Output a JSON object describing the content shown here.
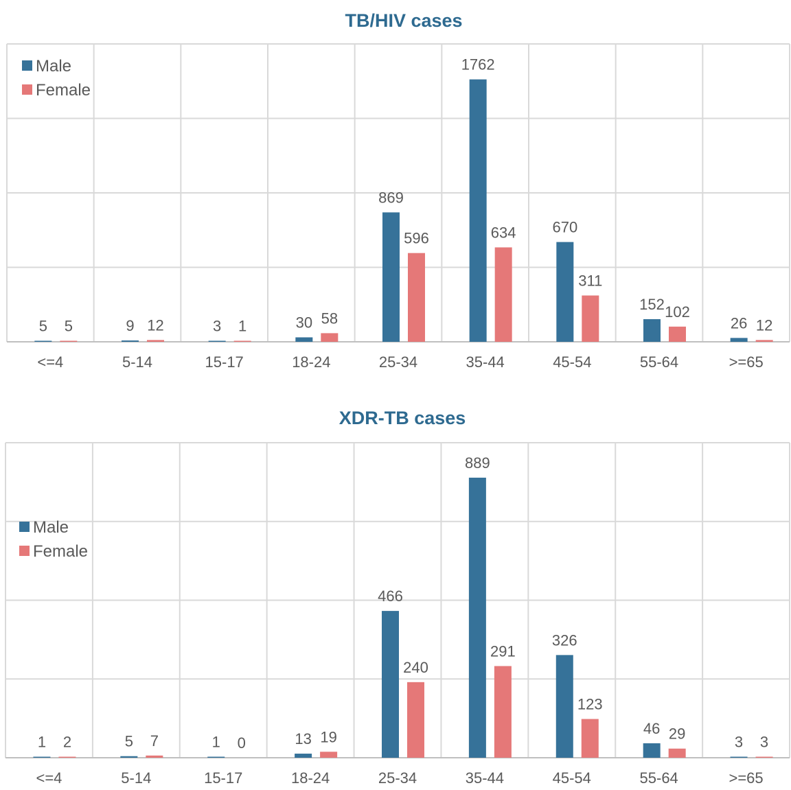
{
  "colors": {
    "male": "#367299",
    "female": "#E57878",
    "grid": "#D9D9D9",
    "text": "#595959",
    "title": "#2E6A90"
  },
  "chart_data": [
    {
      "type": "bar",
      "title": "TB/HIV cases",
      "categories": [
        "<=4",
        "5-14",
        "15-17",
        "18-24",
        "25-34",
        "35-44",
        "45-54",
        "55-64",
        ">=65"
      ],
      "series": [
        {
          "name": "Male",
          "values": [
            5,
            9,
            3,
            30,
            869,
            1762,
            670,
            152,
            26
          ]
        },
        {
          "name": "Female",
          "values": [
            5,
            12,
            1,
            58,
            596,
            634,
            311,
            102,
            12
          ]
        }
      ],
      "ylim": [
        0,
        2000
      ],
      "grid": true,
      "legend": "top-left"
    },
    {
      "type": "bar",
      "title": "XDR-TB cases",
      "categories": [
        "<=4",
        "5-14",
        "15-17",
        "18-24",
        "25-34",
        "35-44",
        "45-54",
        "55-64",
        ">=65"
      ],
      "series": [
        {
          "name": "Male",
          "values": [
            1,
            5,
            1,
            13,
            466,
            889,
            326,
            46,
            3
          ]
        },
        {
          "name": "Female",
          "values": [
            2,
            7,
            0,
            19,
            240,
            291,
            123,
            29,
            3
          ]
        }
      ],
      "ylim": [
        0,
        1000
      ],
      "grid": true,
      "legend": "top-left"
    }
  ]
}
